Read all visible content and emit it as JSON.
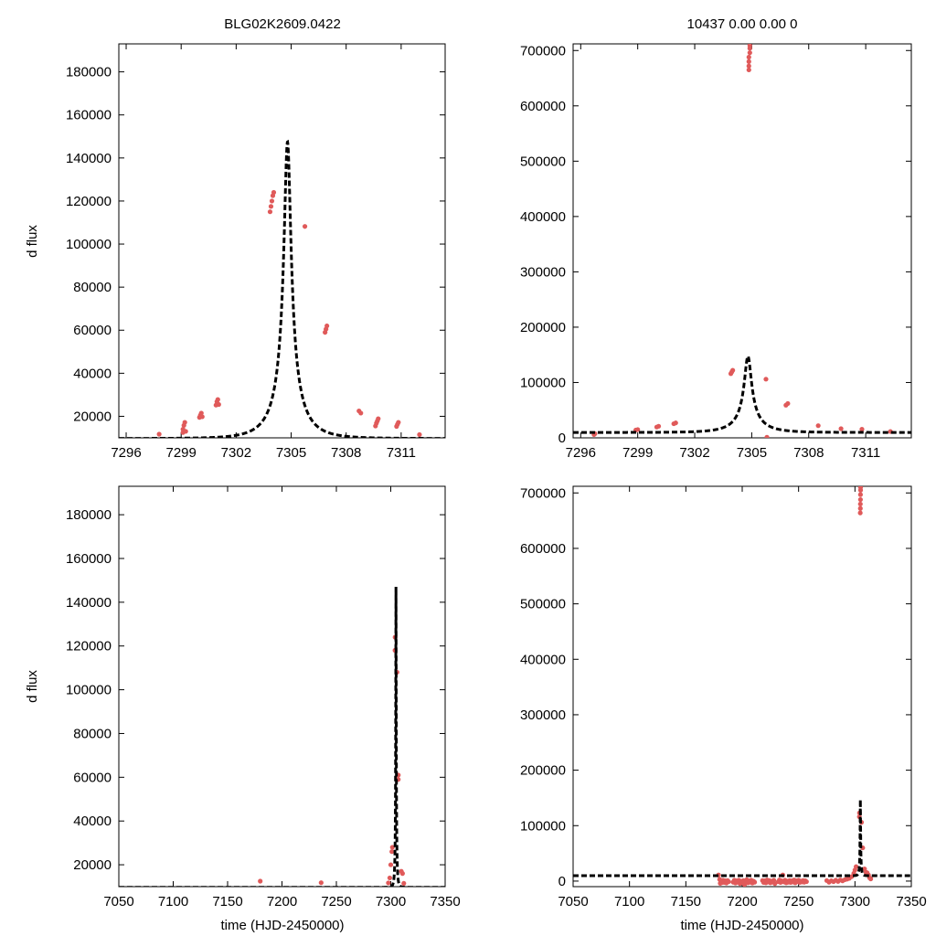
{
  "figure": {
    "titles": [
      "BLG02K2609.0422",
      "10437  0.00  0.00  0"
    ],
    "ylabel": "d flux",
    "xlabel": "time (HJD-2450000)"
  },
  "colors": {
    "data": "#e05a5a",
    "model": "#000000",
    "axis": "#000000"
  },
  "chart_data": [
    {
      "type": "scatter",
      "title": "BLG02K2609.0422",
      "xlabel": "",
      "ylabel": "d flux",
      "xlim": [
        7295.6,
        7313.4
      ],
      "ylim": [
        10000,
        193000
      ],
      "xticks": [
        7296,
        7299,
        7302,
        7305,
        7308,
        7311
      ],
      "yticks": [
        20000,
        40000,
        60000,
        80000,
        100000,
        120000,
        140000,
        160000,
        180000
      ],
      "model": {
        "t0": 7304.8,
        "tE": 1.55,
        "u0": 0.119,
        "fs": 18500,
        "fb": -8800,
        "style": "dashed"
      },
      "points": [
        [
          7297.8,
          11700
        ],
        [
          7299.1,
          12500
        ],
        [
          7299.1,
          14000
        ],
        [
          7299.15,
          15800
        ],
        [
          7299.2,
          17200
        ],
        [
          7299.25,
          13000
        ],
        [
          7300.0,
          19500
        ],
        [
          7300.05,
          20500
        ],
        [
          7300.1,
          21500
        ],
        [
          7300.15,
          19800
        ],
        [
          7300.9,
          25200
        ],
        [
          7300.95,
          26800
        ],
        [
          7301.0,
          27800
        ],
        [
          7301.05,
          25500
        ],
        [
          7303.85,
          115000
        ],
        [
          7303.9,
          117500
        ],
        [
          7303.95,
          120000
        ],
        [
          7304.0,
          122500
        ],
        [
          7304.05,
          124000
        ],
        [
          7305.75,
          108200
        ],
        [
          7306.85,
          59000
        ],
        [
          7306.9,
          60500
        ],
        [
          7306.95,
          62000
        ],
        [
          7308.7,
          22500
        ],
        [
          7308.8,
          21500
        ],
        [
          7309.6,
          15500
        ],
        [
          7309.65,
          16800
        ],
        [
          7309.7,
          17800
        ],
        [
          7309.75,
          18900
        ],
        [
          7310.75,
          15300
        ],
        [
          7310.8,
          16300
        ],
        [
          7310.85,
          17200
        ],
        [
          7312.0,
          11500
        ]
      ]
    },
    {
      "type": "scatter",
      "title": "10437  0.00  0.00  0",
      "xlabel": "",
      "ylabel": "",
      "xlim": [
        7295.6,
        7313.4
      ],
      "ylim": [
        0,
        712000
      ],
      "xticks": [
        7296,
        7299,
        7302,
        7305,
        7308,
        7311
      ],
      "yticks": [
        0,
        100000,
        200000,
        300000,
        400000,
        500000,
        600000,
        700000
      ],
      "model": {
        "t0": 7304.8,
        "tE": 1.55,
        "u0": 0.119,
        "fs": 18500,
        "fb": -8800,
        "style": "dashed"
      },
      "points": [
        [
          7296.7,
          6000
        ],
        [
          7296.75,
          7500
        ],
        [
          7298.9,
          14000
        ],
        [
          7299.0,
          15000
        ],
        [
          7300.0,
          19500
        ],
        [
          7300.1,
          21000
        ],
        [
          7300.9,
          25500
        ],
        [
          7301.0,
          27000
        ],
        [
          7303.9,
          116000
        ],
        [
          7303.95,
          119000
        ],
        [
          7304.0,
          122000
        ],
        [
          7304.85,
          665000
        ],
        [
          7304.85,
          672000
        ],
        [
          7304.85,
          680000
        ],
        [
          7304.85,
          688000
        ],
        [
          7304.9,
          696000
        ],
        [
          7304.9,
          704000
        ],
        [
          7304.9,
          709000
        ],
        [
          7305.8,
          1000
        ],
        [
          7305.75,
          106000
        ],
        [
          7306.8,
          59000
        ],
        [
          7306.9,
          62000
        ],
        [
          7308.5,
          22000
        ],
        [
          7309.7,
          16500
        ],
        [
          7310.8,
          15500
        ],
        [
          7312.3,
          11500
        ]
      ]
    },
    {
      "type": "scatter",
      "title": "",
      "xlabel": "time (HJD-2450000)",
      "ylabel": "d flux",
      "xlim": [
        7050,
        7350
      ],
      "ylim": [
        10000,
        193000
      ],
      "xticks": [
        7050,
        7100,
        7150,
        7200,
        7250,
        7300,
        7350
      ],
      "yticks": [
        20000,
        40000,
        60000,
        80000,
        100000,
        120000,
        140000,
        160000,
        180000
      ],
      "model": {
        "t0": 7304.8,
        "tE": 1.55,
        "u0": 0.119,
        "fs": 18500,
        "fb": -8800,
        "style": "dashed"
      },
      "points": [
        [
          7180,
          12500
        ],
        [
          7236,
          11800
        ],
        [
          7297.8,
          11700
        ],
        [
          7299.1,
          14000
        ],
        [
          7300.0,
          20000
        ],
        [
          7301.0,
          26000
        ],
        [
          7301.5,
          28000
        ],
        [
          7303.9,
          118000
        ],
        [
          7304.0,
          124000
        ],
        [
          7305.75,
          108000
        ],
        [
          7306.9,
          59000
        ],
        [
          7306.95,
          61000
        ],
        [
          7309.7,
          17000
        ],
        [
          7310.8,
          16000
        ],
        [
          7312.0,
          11500
        ]
      ]
    },
    {
      "type": "scatter",
      "title": "",
      "xlabel": "time (HJD-2450000)",
      "ylabel": "",
      "xlim": [
        7050,
        7350
      ],
      "ylim": [
        -10000,
        712000
      ],
      "xticks": [
        7050,
        7100,
        7150,
        7200,
        7250,
        7300,
        7350
      ],
      "yticks": [
        0,
        100000,
        200000,
        300000,
        400000,
        500000,
        600000,
        700000
      ],
      "model": {
        "t0": 7304.8,
        "tE": 1.55,
        "u0": 0.119,
        "fs": 18500,
        "fb": -8800,
        "style": "dashed"
      },
      "points": [
        [
          7179,
          11000
        ],
        [
          7180,
          3000
        ],
        [
          7180.5,
          -4000
        ],
        [
          7181,
          500
        ],
        [
          7181.5,
          -3000
        ],
        [
          7182,
          -1500
        ],
        [
          7183,
          1500
        ],
        [
          7184,
          -2500
        ],
        [
          7185,
          500
        ],
        [
          7186,
          -3500
        ],
        [
          7187,
          1000
        ],
        [
          7188,
          -1000
        ],
        [
          7192,
          -2000
        ],
        [
          7193,
          1500
        ],
        [
          7194,
          -3500
        ],
        [
          7195,
          500
        ],
        [
          7196,
          -2000
        ],
        [
          7197,
          1500
        ],
        [
          7198,
          -4500
        ],
        [
          7199,
          0
        ],
        [
          7200,
          -2500
        ],
        [
          7201,
          1000
        ],
        [
          7202,
          -6500
        ],
        [
          7203,
          -1500
        ],
        [
          7204,
          2500
        ],
        [
          7205,
          -3000
        ],
        [
          7206,
          500
        ],
        [
          7207,
          -2000
        ],
        [
          7208,
          1500
        ],
        [
          7209,
          -3500
        ],
        [
          7210,
          0
        ],
        [
          7211,
          -2000
        ],
        [
          7218,
          1000
        ],
        [
          7219,
          -2500
        ],
        [
          7220,
          500
        ],
        [
          7221,
          -3000
        ],
        [
          7222,
          2000
        ],
        [
          7223,
          -1500
        ],
        [
          7224,
          1000
        ],
        [
          7225,
          -3000
        ],
        [
          7226,
          0
        ],
        [
          7227,
          -1500
        ],
        [
          7228,
          1500
        ],
        [
          7229,
          -4500
        ],
        [
          7232,
          -1000
        ],
        [
          7233,
          2000
        ],
        [
          7234,
          -2500
        ],
        [
          7235,
          500
        ],
        [
          7236,
          11000
        ],
        [
          7237,
          -1500
        ],
        [
          7238,
          1500
        ],
        [
          7239,
          -3000
        ],
        [
          7240,
          0
        ],
        [
          7241,
          -2000
        ],
        [
          7242,
          1000
        ],
        [
          7243,
          -2500
        ],
        [
          7244,
          500
        ],
        [
          7245,
          -1500
        ],
        [
          7246,
          2000
        ],
        [
          7247,
          -3000
        ],
        [
          7248,
          500
        ],
        [
          7249,
          -1000
        ],
        [
          7250,
          1500
        ],
        [
          7251,
          -2500
        ],
        [
          7252,
          0
        ],
        [
          7253,
          -1500
        ],
        [
          7254,
          1000
        ],
        [
          7255,
          -2000
        ],
        [
          7256,
          500
        ],
        [
          7257,
          -1000
        ],
        [
          7275,
          1000
        ],
        [
          7277,
          -2000
        ],
        [
          7279,
          500
        ],
        [
          7281,
          -1000
        ],
        [
          7283,
          1500
        ],
        [
          7285,
          -500
        ],
        [
          7287,
          2000
        ],
        [
          7289,
          500
        ],
        [
          7291,
          2500
        ],
        [
          7293,
          3500
        ],
        [
          7295,
          5000
        ],
        [
          7297,
          8000
        ],
        [
          7299,
          14000
        ],
        [
          7300,
          20000
        ],
        [
          7301,
          26000
        ],
        [
          7303.9,
          116000
        ],
        [
          7304.0,
          123000
        ],
        [
          7304.7,
          664000
        ],
        [
          7304.8,
          672000
        ],
        [
          7304.8,
          680000
        ],
        [
          7304.9,
          688000
        ],
        [
          7304.9,
          697000
        ],
        [
          7305.0,
          705000
        ],
        [
          7305.0,
          710000
        ],
        [
          7305.8,
          106000
        ],
        [
          7306.9,
          60000
        ],
        [
          7308.5,
          22000
        ],
        [
          7309.7,
          16000
        ],
        [
          7310.8,
          15000
        ],
        [
          7312,
          11000
        ],
        [
          7313,
          6000
        ],
        [
          7314,
          4000
        ]
      ]
    }
  ]
}
